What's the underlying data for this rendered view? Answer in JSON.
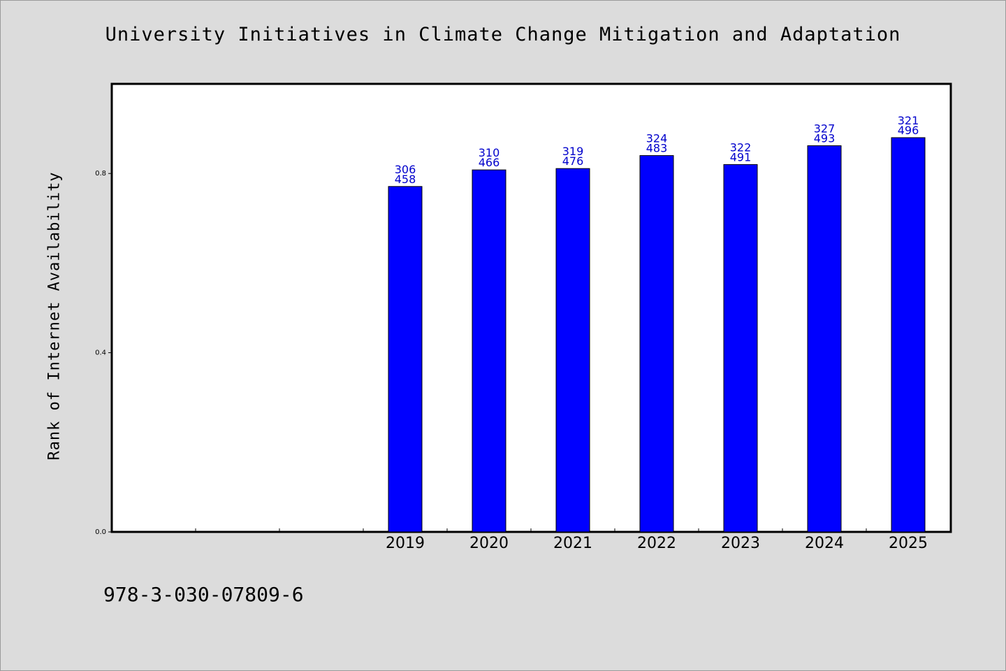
{
  "chart_data": {
    "type": "bar",
    "title": "University Initiatives in Climate Change Mitigation and Adaptation",
    "xlabel": "",
    "ylabel": "Rank of Internet Availability",
    "categories": [
      "",
      "",
      "",
      "2019",
      "2020",
      "2021",
      "2022",
      "2023",
      "2024",
      "2025"
    ],
    "values": [
      null,
      null,
      null,
      0.771,
      0.808,
      0.811,
      0.84,
      0.82,
      0.862,
      0.88
    ],
    "annotations": [
      null,
      null,
      null,
      [
        "306",
        "458"
      ],
      [
        "310",
        "466"
      ],
      [
        "319",
        "476"
      ],
      [
        "324",
        "483"
      ],
      [
        "322",
        "491"
      ],
      [
        "327",
        "493"
      ],
      [
        "321",
        "496"
      ]
    ],
    "ylim": [
      0,
      1.0
    ],
    "yticks": [
      0.0,
      0.4,
      0.8
    ],
    "ytick_labels": [
      "0.0",
      "0.4",
      "0.8"
    ],
    "grid": false,
    "colors": {
      "bar": "#0000ff",
      "annotation": "#0000cc",
      "background": "#dcdcdc",
      "plot_background": "#ffffff"
    }
  },
  "footer": {
    "isbn": "978-3-030-07809-6"
  }
}
